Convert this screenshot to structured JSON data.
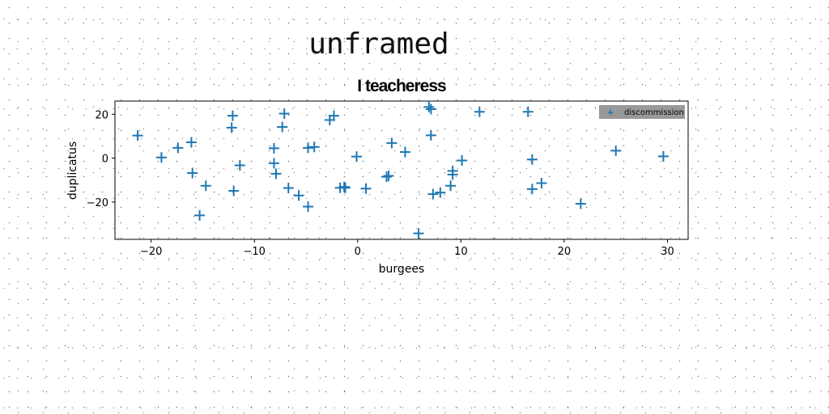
{
  "page": {
    "heading": "unframed"
  },
  "chart_data": {
    "type": "scatter",
    "title": "I teacheress",
    "xlabel": "burgees",
    "ylabel": "duplicatus",
    "xlim": [
      -23.5,
      32
    ],
    "ylim": [
      -37,
      26
    ],
    "xticks": [
      -20,
      -10,
      0,
      10,
      20,
      30
    ],
    "yticks": [
      -20,
      0,
      20
    ],
    "grid": false,
    "legend": {
      "position": "top-right"
    },
    "colors": {
      "series": "#1f77b4",
      "legend_bg": "#999999"
    },
    "series": [
      {
        "name": "discommission",
        "marker": "plus",
        "points": [
          [
            -21.3,
            10.3
          ],
          [
            -19.0,
            0.3
          ],
          [
            -17.4,
            4.7
          ],
          [
            -16.1,
            7.2
          ],
          [
            -16.0,
            -6.8
          ],
          [
            -15.3,
            -26.1
          ],
          [
            -14.7,
            -12.6
          ],
          [
            -12.1,
            19.3
          ],
          [
            -12.2,
            13.9
          ],
          [
            -12.0,
            -14.9
          ],
          [
            -11.4,
            -3.3
          ],
          [
            -7.1,
            20.3
          ],
          [
            -7.3,
            14.2
          ],
          [
            -8.1,
            4.5
          ],
          [
            -8.1,
            -2.3
          ],
          [
            -7.9,
            -7.1
          ],
          [
            -6.7,
            -13.6
          ],
          [
            -5.7,
            -17.0
          ],
          [
            -4.8,
            4.7
          ],
          [
            -4.2,
            5.1
          ],
          [
            -4.8,
            -22.1
          ],
          [
            -2.7,
            17.4
          ],
          [
            -2.3,
            19.3
          ],
          [
            -1.7,
            -13.5
          ],
          [
            -1.3,
            -13.1
          ],
          [
            -1.2,
            -13.5
          ],
          [
            -0.1,
            0.7
          ],
          [
            0.8,
            -13.9
          ],
          [
            3.3,
            6.9
          ],
          [
            2.8,
            -8.5
          ],
          [
            3.0,
            -8.1
          ],
          [
            4.6,
            2.8
          ],
          [
            6.9,
            23.3
          ],
          [
            7.1,
            22.3
          ],
          [
            7.1,
            10.4
          ],
          [
            5.9,
            -34.3
          ],
          [
            7.3,
            -16.4
          ],
          [
            8.0,
            -15.7
          ],
          [
            9.2,
            -5.8
          ],
          [
            9.2,
            -7.5
          ],
          [
            9.0,
            -12.6
          ],
          [
            10.1,
            -1.1
          ],
          [
            11.8,
            21.1
          ],
          [
            16.5,
            21.1
          ],
          [
            16.9,
            -0.6
          ],
          [
            16.9,
            -14.1
          ],
          [
            17.8,
            -11.4
          ],
          [
            21.6,
            -20.8
          ],
          [
            25.0,
            3.4
          ],
          [
            29.6,
            0.8
          ]
        ]
      }
    ]
  }
}
